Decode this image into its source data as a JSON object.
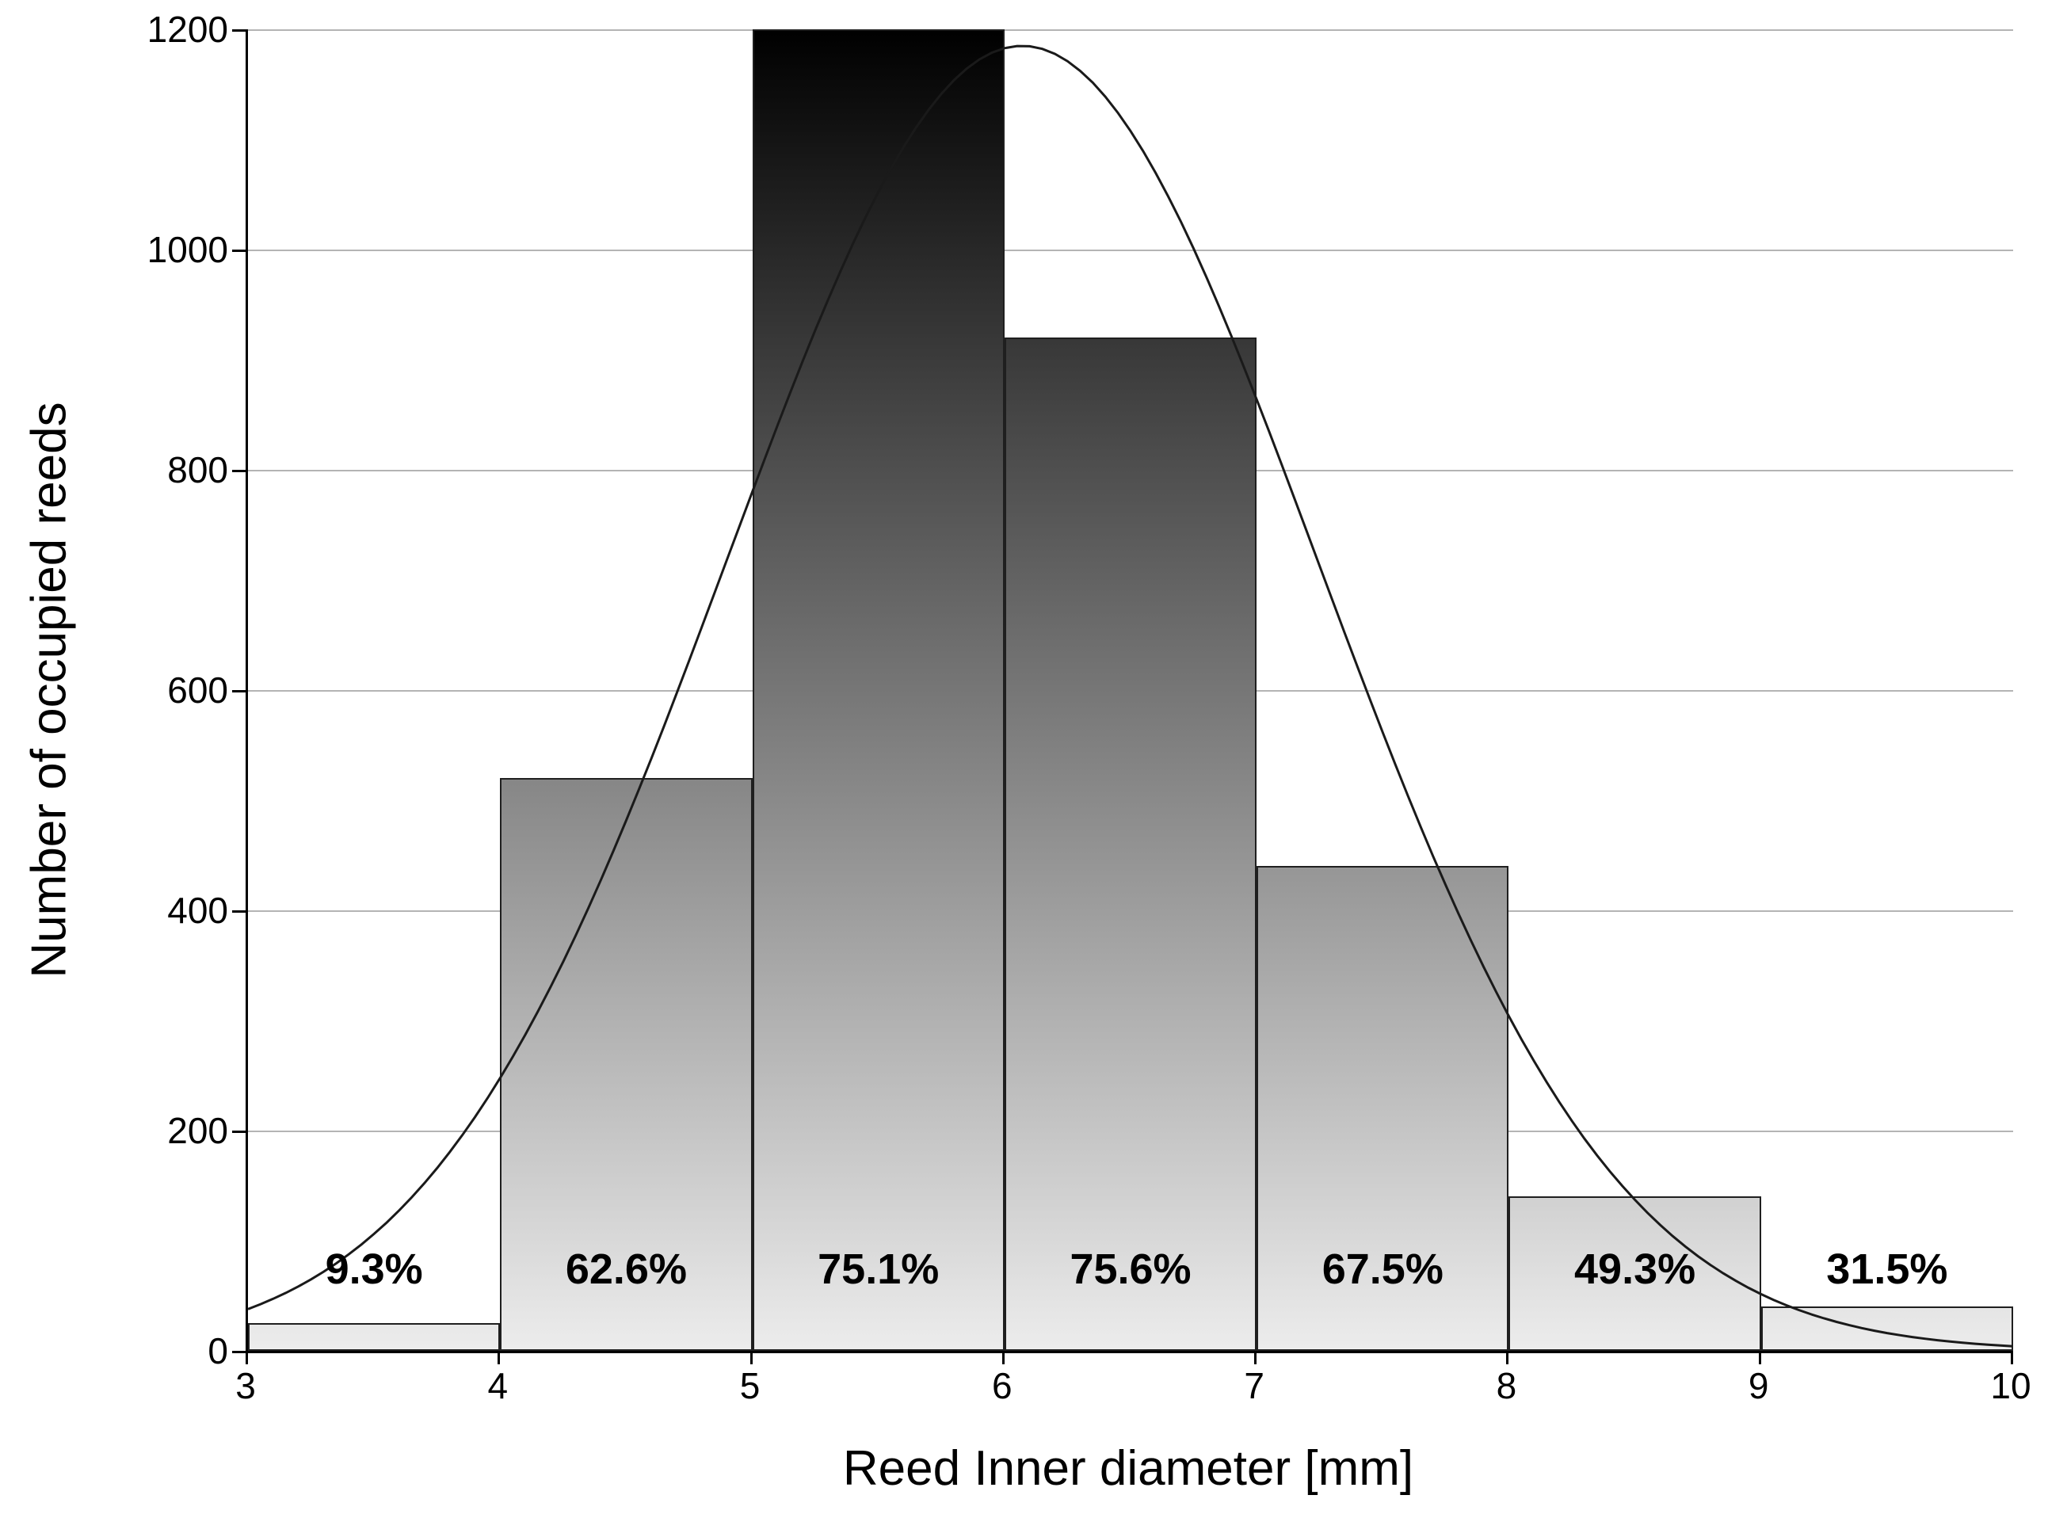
{
  "chart_data": {
    "type": "bar",
    "subtype": "histogram-with-normal-curve",
    "title": "",
    "xlabel": "Reed Inner diameter [mm]",
    "ylabel": "Number of occupied reeds",
    "xlim": [
      3,
      10
    ],
    "ylim": [
      0,
      1200
    ],
    "x_ticks": [
      3,
      4,
      5,
      6,
      7,
      8,
      9,
      10
    ],
    "y_ticks": [
      0,
      200,
      400,
      600,
      800,
      1000,
      1200
    ],
    "grid": "horizontal",
    "legend": "none",
    "bins": [
      {
        "range": [
          3,
          4
        ],
        "count": 25,
        "label": "9.3%"
      },
      {
        "range": [
          4,
          5
        ],
        "count": 520,
        "label": "62.6%"
      },
      {
        "range": [
          5,
          6
        ],
        "count": 1200,
        "label": "75.1%"
      },
      {
        "range": [
          6,
          7
        ],
        "count": 920,
        "label": "75.6%"
      },
      {
        "range": [
          7,
          8
        ],
        "count": 440,
        "label": "67.5%"
      },
      {
        "range": [
          8,
          9
        ],
        "count": 140,
        "label": "49.3%"
      },
      {
        "range": [
          9,
          10
        ],
        "count": 40,
        "label": "31.5%"
      }
    ],
    "curve": {
      "type": "normal",
      "mean": 6.07,
      "sd": 1.17,
      "peak": 1185
    },
    "colors": {
      "background": "#ffffff",
      "bar_gradient_top": "#000000",
      "bar_gradient_bottom": "#ececec",
      "bar_border": "#1f1f1f",
      "grid": "#b4b4b4",
      "axis": "#000000",
      "curve": "#1a1a1a",
      "text": "#000000"
    }
  }
}
